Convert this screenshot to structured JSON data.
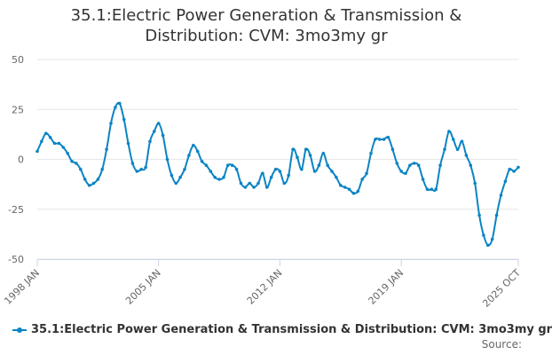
{
  "title_lines": [
    "35.1:Electric Power Generation & Transmission &",
    "Distribution: CVM: 3mo3my gr"
  ],
  "legend_label": "35.1:Electric Power Generation & Transmission & Distribution: CVM: 3mo3my gr",
  "source_label": "Source:",
  "colors": {
    "series": "#0B84C4",
    "grid": "#e6e6e6",
    "axis": "#ccd6eb",
    "text": "#666666"
  },
  "chart_data": {
    "type": "line",
    "title": "35.1:Electric Power Generation & Transmission & Distribution: CVM: 3mo3my gr",
    "xlabel": "",
    "ylabel": "",
    "ylim": [
      -50,
      50
    ],
    "yticks": [
      50,
      25,
      0,
      -25,
      -50
    ],
    "x_start": "1998-01",
    "x_end": "2025-10",
    "xticks": [
      {
        "label": "1998 JAN",
        "date": "1998-01"
      },
      {
        "label": "2005 JAN",
        "date": "2005-01"
      },
      {
        "label": "2012 JAN",
        "date": "2012-01"
      },
      {
        "label": "2019 JAN",
        "date": "2019-01"
      },
      {
        "label": "2025 OCT",
        "date": "2025-10"
      }
    ],
    "grid": true,
    "legend_position": "bottom",
    "series": [
      {
        "name": "35.1:Electric Power Generation & Transmission & Distribution: CVM: 3mo3my gr",
        "points": [
          [
            "1998-01",
            4
          ],
          [
            "1998-04",
            9
          ],
          [
            "1998-07",
            13
          ],
          [
            "1998-10",
            11
          ],
          [
            "1999-01",
            8
          ],
          [
            "1999-04",
            8
          ],
          [
            "1999-07",
            6
          ],
          [
            "1999-10",
            3
          ],
          [
            "2000-01",
            -1
          ],
          [
            "2000-04",
            -2
          ],
          [
            "2000-07",
            -5
          ],
          [
            "2000-10",
            -10
          ],
          [
            "2001-01",
            -13
          ],
          [
            "2001-04",
            -12
          ],
          [
            "2001-07",
            -10
          ],
          [
            "2001-10",
            -5
          ],
          [
            "2002-01",
            5
          ],
          [
            "2002-04",
            18
          ],
          [
            "2002-07",
            26
          ],
          [
            "2002-10",
            28
          ],
          [
            "2003-01",
            20
          ],
          [
            "2003-04",
            8
          ],
          [
            "2003-07",
            -2
          ],
          [
            "2003-10",
            -6
          ],
          [
            "2004-01",
            -5
          ],
          [
            "2004-04",
            -4
          ],
          [
            "2004-07",
            9
          ],
          [
            "2004-10",
            14
          ],
          [
            "2005-01",
            18
          ],
          [
            "2005-04",
            12
          ],
          [
            "2005-07",
            0
          ],
          [
            "2005-10",
            -8
          ],
          [
            "2006-01",
            -12
          ],
          [
            "2006-04",
            -9
          ],
          [
            "2006-07",
            -5
          ],
          [
            "2006-10",
            2
          ],
          [
            "2007-01",
            7
          ],
          [
            "2007-04",
            4
          ],
          [
            "2007-07",
            -1
          ],
          [
            "2007-10",
            -3
          ],
          [
            "2008-01",
            -6
          ],
          [
            "2008-04",
            -9
          ],
          [
            "2008-07",
            -10
          ],
          [
            "2008-10",
            -9
          ],
          [
            "2009-01",
            -3
          ],
          [
            "2009-04",
            -3
          ],
          [
            "2009-07",
            -5
          ],
          [
            "2009-10",
            -12
          ],
          [
            "2010-01",
            -14
          ],
          [
            "2010-04",
            -12
          ],
          [
            "2010-07",
            -14
          ],
          [
            "2010-10",
            -12
          ],
          [
            "2011-01",
            -7
          ],
          [
            "2011-04",
            -14
          ],
          [
            "2011-07",
            -9
          ],
          [
            "2011-10",
            -5
          ],
          [
            "2012-01",
            -6
          ],
          [
            "2012-04",
            -12
          ],
          [
            "2012-07",
            -8
          ],
          [
            "2012-10",
            5
          ],
          [
            "2013-01",
            1
          ],
          [
            "2013-04",
            -5
          ],
          [
            "2013-07",
            5
          ],
          [
            "2013-10",
            2
          ],
          [
            "2014-01",
            -6
          ],
          [
            "2014-04",
            -3
          ],
          [
            "2014-07",
            3
          ],
          [
            "2014-10",
            -3
          ],
          [
            "2015-01",
            -6
          ],
          [
            "2015-04",
            -9
          ],
          [
            "2015-07",
            -13
          ],
          [
            "2015-10",
            -14
          ],
          [
            "2016-01",
            -15
          ],
          [
            "2016-04",
            -17
          ],
          [
            "2016-07",
            -16
          ],
          [
            "2016-10",
            -10
          ],
          [
            "2017-01",
            -7
          ],
          [
            "2017-04",
            3
          ],
          [
            "2017-07",
            10
          ],
          [
            "2017-10",
            10
          ],
          [
            "2018-01",
            10
          ],
          [
            "2018-04",
            11
          ],
          [
            "2018-07",
            5
          ],
          [
            "2018-10",
            -2
          ],
          [
            "2019-01",
            -6
          ],
          [
            "2019-04",
            -7
          ],
          [
            "2019-07",
            -3
          ],
          [
            "2019-10",
            -2
          ],
          [
            "2020-01",
            -3
          ],
          [
            "2020-04",
            -10
          ],
          [
            "2020-07",
            -15
          ],
          [
            "2020-10",
            -15
          ],
          [
            "2021-01",
            -15
          ],
          [
            "2021-04",
            -3
          ],
          [
            "2021-07",
            5
          ],
          [
            "2021-10",
            14
          ],
          [
            "2022-01",
            10
          ],
          [
            "2022-04",
            5
          ],
          [
            "2022-07",
            9
          ],
          [
            "2022-10",
            2
          ],
          [
            "2023-01",
            -3
          ],
          [
            "2023-04",
            -12
          ],
          [
            "2023-07",
            -28
          ],
          [
            "2023-10",
            -38
          ],
          [
            "2024-01",
            -43
          ],
          [
            "2024-04",
            -40
          ],
          [
            "2024-07",
            -28
          ],
          [
            "2024-10",
            -18
          ],
          [
            "2025-01",
            -11
          ],
          [
            "2025-04",
            -5
          ],
          [
            "2025-07",
            -6
          ],
          [
            "2025-10",
            -4
          ]
        ]
      }
    ]
  }
}
